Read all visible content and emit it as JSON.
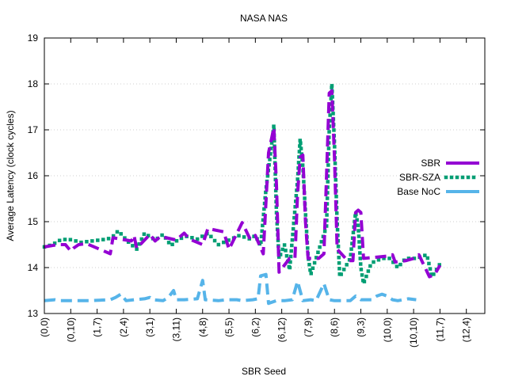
{
  "chart_data": {
    "type": "line",
    "title": "NASA NAS",
    "xlabel": "SBR Seed",
    "ylabel": "Average Latency (clock cycles)",
    "ylim": [
      13,
      19
    ],
    "yticks": [
      13,
      14,
      15,
      16,
      17,
      18,
      19
    ],
    "grid": true,
    "legend_position": "right",
    "x_tick_labels": [
      "(0,0)",
      "(0,10)",
      "(1,7)",
      "(2,4)",
      "(3,1)",
      "(3,11)",
      "(4,8)",
      "(5,5)",
      "(6,2)",
      "(6,12)",
      "(7,9)",
      "(8,6)",
      "(9,3)",
      "(10,0)",
      "(10,10)",
      "(11,7)",
      "(12,4)"
    ],
    "x_tick_spacing": 10,
    "n_points": 168,
    "x_index_start": 0,
    "series": [
      {
        "name": "SBR",
        "color": "#9400d3",
        "style": "dashed",
        "points": [
          [
            0,
            14.45
          ],
          [
            3,
            14.48
          ],
          [
            5,
            14.5
          ],
          [
            8,
            14.5
          ],
          [
            10,
            14.36
          ],
          [
            11,
            14.42
          ],
          [
            13,
            14.5
          ],
          [
            16,
            14.52
          ],
          [
            23,
            14.35
          ],
          [
            25,
            14.3
          ],
          [
            26,
            14.65
          ],
          [
            33,
            14.58
          ],
          [
            34,
            14.7
          ],
          [
            35,
            14.42
          ],
          [
            40,
            14.72
          ],
          [
            42,
            14.58
          ],
          [
            44,
            14.68
          ],
          [
            50,
            14.6
          ],
          [
            53,
            14.75
          ],
          [
            55,
            14.62
          ],
          [
            60,
            14.5
          ],
          [
            62,
            14.85
          ],
          [
            68,
            14.78
          ],
          [
            70,
            14.4
          ],
          [
            75,
            14.98
          ],
          [
            78,
            14.62
          ],
          [
            80,
            14.7
          ],
          [
            83,
            14.3
          ],
          [
            85,
            16.5
          ],
          [
            87,
            17.05
          ],
          [
            88,
            15.8
          ],
          [
            89,
            13.9
          ],
          [
            93,
            14.2
          ],
          [
            95,
            14.2
          ],
          [
            96,
            15.6
          ],
          [
            97,
            16.4
          ],
          [
            98,
            16.45
          ],
          [
            99,
            15.0
          ],
          [
            100,
            14.2
          ],
          [
            104,
            14.2
          ],
          [
            106,
            14.3
          ],
          [
            107,
            16.0
          ],
          [
            108,
            17.8
          ],
          [
            109,
            17.85
          ],
          [
            110,
            16.4
          ],
          [
            111,
            14.4
          ],
          [
            115,
            14.15
          ],
          [
            117,
            14.15
          ],
          [
            118,
            15.2
          ],
          [
            119,
            15.25
          ],
          [
            120,
            15.2
          ],
          [
            121,
            14.2
          ],
          [
            130,
            14.25
          ],
          [
            132,
            14.28
          ],
          [
            133,
            14.12
          ],
          [
            137,
            14.15
          ],
          [
            140,
            14.2
          ],
          [
            142,
            14.28
          ],
          [
            146,
            13.8
          ],
          [
            148,
            13.85
          ],
          [
            150,
            14.05
          ]
        ]
      },
      {
        "name": "SBR-SZA",
        "color": "#009e73",
        "style": "dotted",
        "points": [
          [
            0,
            14.45
          ],
          [
            3,
            14.5
          ],
          [
            6,
            14.6
          ],
          [
            9,
            14.62
          ],
          [
            14,
            14.55
          ],
          [
            18,
            14.58
          ],
          [
            24,
            14.62
          ],
          [
            26,
            14.68
          ],
          [
            28,
            14.8
          ],
          [
            32,
            14.55
          ],
          [
            35,
            14.4
          ],
          [
            38,
            14.75
          ],
          [
            42,
            14.6
          ],
          [
            45,
            14.72
          ],
          [
            48,
            14.48
          ],
          [
            51,
            14.62
          ],
          [
            54,
            14.68
          ],
          [
            58,
            14.62
          ],
          [
            62,
            14.75
          ],
          [
            66,
            14.5
          ],
          [
            70,
            14.6
          ],
          [
            74,
            14.7
          ],
          [
            78,
            14.62
          ],
          [
            80,
            14.7
          ],
          [
            82,
            14.48
          ],
          [
            84,
            15.7
          ],
          [
            86,
            16.6
          ],
          [
            87,
            17.1
          ],
          [
            88,
            15.2
          ],
          [
            89,
            14.2
          ],
          [
            91,
            14.5
          ],
          [
            93,
            13.95
          ],
          [
            96,
            15.9
          ],
          [
            97,
            16.8
          ],
          [
            98,
            16.2
          ],
          [
            99,
            15.2
          ],
          [
            100,
            14.25
          ],
          [
            101,
            13.85
          ],
          [
            107,
            14.9
          ],
          [
            108,
            17.0
          ],
          [
            109,
            18.0
          ],
          [
            110,
            16.7
          ],
          [
            111,
            15.0
          ],
          [
            112,
            13.8
          ],
          [
            116,
            14.2
          ],
          [
            118,
            15.2
          ],
          [
            119,
            14.9
          ],
          [
            120,
            14.0
          ],
          [
            121,
            13.65
          ],
          [
            124,
            14.1
          ],
          [
            128,
            14.2
          ],
          [
            131,
            14.2
          ],
          [
            134,
            14.0
          ],
          [
            137,
            14.2
          ],
          [
            141,
            14.2
          ],
          [
            145,
            14.28
          ],
          [
            147,
            13.8
          ],
          [
            150,
            14.08
          ]
        ]
      },
      {
        "name": "Base NoC",
        "color": "#56b4e9",
        "style": "dashed",
        "points": [
          [
            0,
            13.28
          ],
          [
            4,
            13.3
          ],
          [
            6,
            13.28
          ],
          [
            10,
            13.28
          ],
          [
            15,
            13.28
          ],
          [
            17,
            13.28
          ],
          [
            25,
            13.3
          ],
          [
            27,
            13.35
          ],
          [
            29,
            13.42
          ],
          [
            31,
            13.28
          ],
          [
            34,
            13.3
          ],
          [
            38,
            13.32
          ],
          [
            40,
            13.35
          ],
          [
            41,
            13.3
          ],
          [
            45,
            13.28
          ],
          [
            47,
            13.35
          ],
          [
            49,
            13.5
          ],
          [
            50,
            13.3
          ],
          [
            53,
            13.3
          ],
          [
            58,
            13.32
          ],
          [
            60,
            13.72
          ],
          [
            61,
            13.3
          ],
          [
            66,
            13.28
          ],
          [
            69,
            13.3
          ],
          [
            73,
            13.3
          ],
          [
            75,
            13.28
          ],
          [
            79,
            13.3
          ],
          [
            81,
            13.32
          ],
          [
            82,
            13.82
          ],
          [
            84,
            13.85
          ],
          [
            85,
            13.22
          ],
          [
            88,
            13.28
          ],
          [
            91,
            13.28
          ],
          [
            94,
            13.3
          ],
          [
            96,
            13.7
          ],
          [
            98,
            13.28
          ],
          [
            101,
            13.3
          ],
          [
            103,
            13.28
          ],
          [
            106,
            13.65
          ],
          [
            108,
            13.3
          ],
          [
            110,
            13.28
          ],
          [
            114,
            13.28
          ],
          [
            116,
            13.28
          ],
          [
            118,
            13.38
          ],
          [
            120,
            13.3
          ],
          [
            124,
            13.3
          ],
          [
            126,
            13.38
          ],
          [
            128,
            13.42
          ],
          [
            130,
            13.38
          ],
          [
            132,
            13.3
          ],
          [
            134,
            13.28
          ],
          [
            138,
            13.32
          ],
          [
            141,
            13.3
          ]
        ]
      }
    ]
  }
}
